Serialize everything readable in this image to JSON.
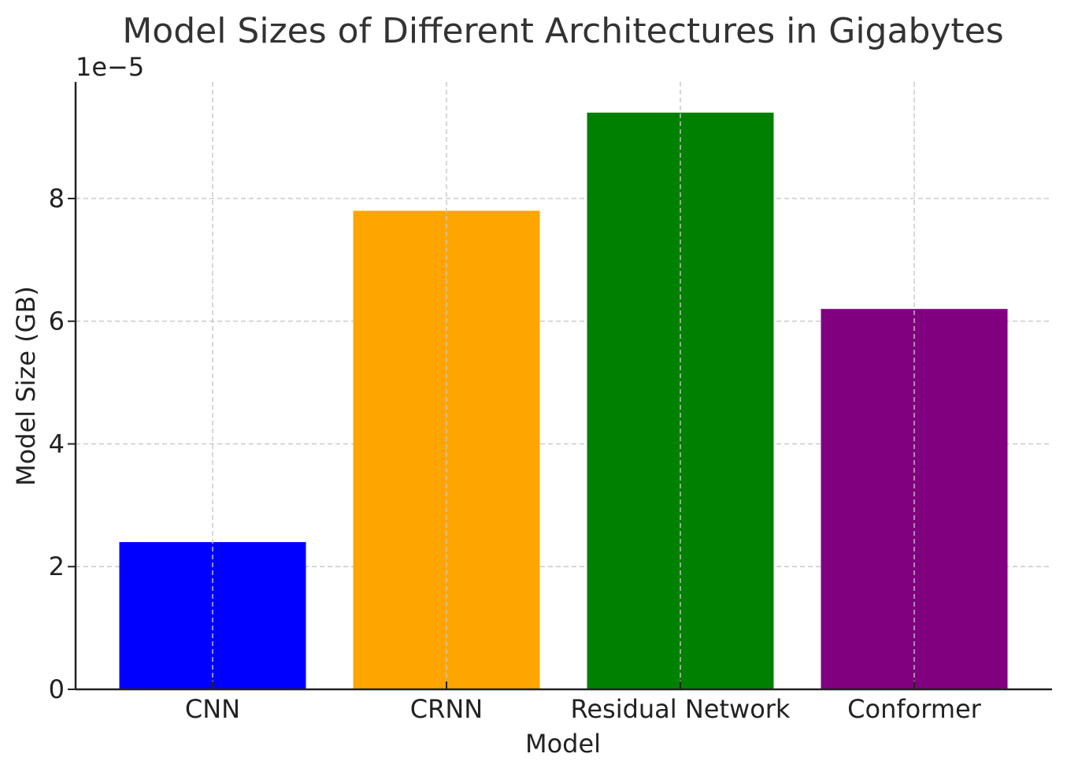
{
  "chart_data": {
    "type": "bar",
    "title": "Model Sizes of Different Architectures in Gigabytes",
    "xlabel": "Model",
    "ylabel": "Model Size (GB)",
    "offset_label": "1e−5",
    "categories": [
      "CNN",
      "CRNN",
      "Residual Network",
      "Conformer"
    ],
    "values": [
      2.4,
      7.8,
      9.4,
      6.2
    ],
    "value_scale": "1e-5",
    "colors": [
      "#0000ff",
      "#ffa500",
      "#008000",
      "#800080"
    ],
    "ylim": [
      0,
      9.9
    ],
    "yticks": [
      0,
      2,
      4,
      6,
      8
    ],
    "ytick_labels": [
      "0",
      "2",
      "4",
      "6",
      "8"
    ],
    "grid": true,
    "legend": false
  }
}
